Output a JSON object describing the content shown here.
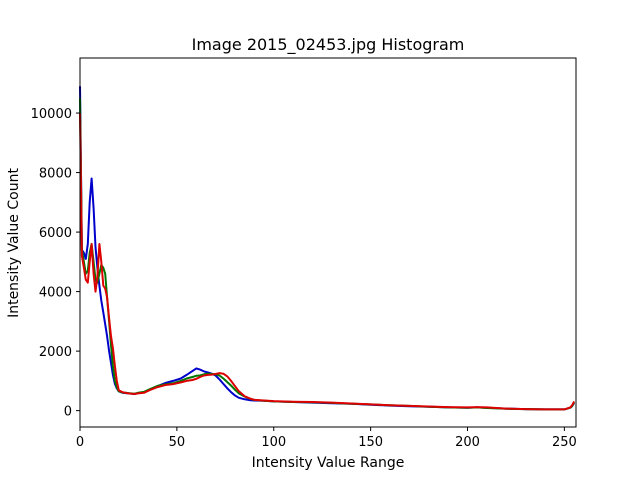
{
  "chart_data": {
    "type": "line",
    "title": "Image 2015_02453.jpg Histogram",
    "xlabel": "Intensity Value Range",
    "ylabel": "Intensity Value Count",
    "xlim": [
      0,
      256
    ],
    "ylim": [
      -550,
      11850
    ],
    "xticks": [
      0,
      50,
      100,
      150,
      200,
      250
    ],
    "yticks": [
      0,
      2000,
      4000,
      6000,
      8000,
      10000
    ],
    "grid": false,
    "legend": "none",
    "series": [
      {
        "color": "#0000cc",
        "points": [
          [
            0,
            10900
          ],
          [
            1,
            5400
          ],
          [
            2,
            5300
          ],
          [
            3,
            5100
          ],
          [
            4,
            5600
          ],
          [
            5,
            7000
          ],
          [
            6,
            7800
          ],
          [
            7,
            6800
          ],
          [
            8,
            5500
          ],
          [
            9,
            4800
          ],
          [
            10,
            4200
          ],
          [
            11,
            3700
          ],
          [
            12,
            3300
          ],
          [
            13,
            2900
          ],
          [
            14,
            2500
          ],
          [
            15,
            2000
          ],
          [
            16,
            1600
          ],
          [
            17,
            1200
          ],
          [
            18,
            900
          ],
          [
            19,
            750
          ],
          [
            20,
            650
          ],
          [
            22,
            600
          ],
          [
            25,
            580
          ],
          [
            28,
            560
          ],
          [
            30,
            590
          ],
          [
            33,
            620
          ],
          [
            36,
            700
          ],
          [
            40,
            820
          ],
          [
            44,
            930
          ],
          [
            48,
            1000
          ],
          [
            52,
            1080
          ],
          [
            55,
            1200
          ],
          [
            58,
            1330
          ],
          [
            60,
            1420
          ],
          [
            62,
            1380
          ],
          [
            64,
            1320
          ],
          [
            66,
            1280
          ],
          [
            68,
            1240
          ],
          [
            70,
            1180
          ],
          [
            72,
            1050
          ],
          [
            74,
            900
          ],
          [
            76,
            750
          ],
          [
            78,
            620
          ],
          [
            80,
            510
          ],
          [
            82,
            430
          ],
          [
            85,
            380
          ],
          [
            88,
            350
          ],
          [
            90,
            340
          ],
          [
            95,
            330
          ],
          [
            100,
            310
          ],
          [
            110,
            290
          ],
          [
            120,
            270
          ],
          [
            130,
            250
          ],
          [
            140,
            230
          ],
          [
            150,
            200
          ],
          [
            160,
            170
          ],
          [
            170,
            150
          ],
          [
            180,
            130
          ],
          [
            190,
            110
          ],
          [
            200,
            100
          ],
          [
            205,
            110
          ],
          [
            210,
            100
          ],
          [
            220,
            70
          ],
          [
            230,
            50
          ],
          [
            240,
            40
          ],
          [
            250,
            40
          ],
          [
            253,
            100
          ],
          [
            254,
            150
          ],
          [
            255,
            250
          ]
        ]
      },
      {
        "color": "#007700",
        "points": [
          [
            0,
            10500
          ],
          [
            1,
            5400
          ],
          [
            2,
            5000
          ],
          [
            3,
            4600
          ],
          [
            4,
            4700
          ],
          [
            5,
            5300
          ],
          [
            6,
            5600
          ],
          [
            7,
            5000
          ],
          [
            8,
            4400
          ],
          [
            9,
            4300
          ],
          [
            10,
            4600
          ],
          [
            11,
            4900
          ],
          [
            12,
            4800
          ],
          [
            13,
            4600
          ],
          [
            14,
            3800
          ],
          [
            15,
            3000
          ],
          [
            16,
            2200
          ],
          [
            17,
            1500
          ],
          [
            18,
            1000
          ],
          [
            19,
            780
          ],
          [
            20,
            650
          ],
          [
            22,
            610
          ],
          [
            25,
            590
          ],
          [
            28,
            570
          ],
          [
            30,
            600
          ],
          [
            33,
            630
          ],
          [
            36,
            720
          ],
          [
            40,
            830
          ],
          [
            44,
            880
          ],
          [
            48,
            920
          ],
          [
            52,
            1000
          ],
          [
            55,
            1080
          ],
          [
            58,
            1130
          ],
          [
            60,
            1170
          ],
          [
            62,
            1180
          ],
          [
            64,
            1220
          ],
          [
            66,
            1240
          ],
          [
            68,
            1230
          ],
          [
            70,
            1220
          ],
          [
            72,
            1180
          ],
          [
            74,
            1080
          ],
          [
            76,
            960
          ],
          [
            78,
            840
          ],
          [
            80,
            700
          ],
          [
            82,
            580
          ],
          [
            85,
            470
          ],
          [
            88,
            390
          ],
          [
            90,
            360
          ],
          [
            95,
            330
          ],
          [
            100,
            310
          ],
          [
            110,
            290
          ],
          [
            120,
            280
          ],
          [
            130,
            260
          ],
          [
            140,
            230
          ],
          [
            150,
            210
          ],
          [
            160,
            180
          ],
          [
            170,
            160
          ],
          [
            180,
            130
          ],
          [
            190,
            110
          ],
          [
            200,
            100
          ],
          [
            205,
            110
          ],
          [
            210,
            90
          ],
          [
            220,
            60
          ],
          [
            230,
            50
          ],
          [
            240,
            40
          ],
          [
            250,
            40
          ],
          [
            253,
            100
          ],
          [
            254,
            150
          ],
          [
            255,
            280
          ]
        ]
      },
      {
        "color": "#dd0000",
        "points": [
          [
            0,
            10000
          ],
          [
            1,
            5200
          ],
          [
            2,
            4800
          ],
          [
            3,
            4400
          ],
          [
            4,
            4300
          ],
          [
            5,
            5000
          ],
          [
            6,
            5600
          ],
          [
            7,
            4600
          ],
          [
            8,
            4000
          ],
          [
            9,
            4500
          ],
          [
            10,
            5600
          ],
          [
            11,
            5000
          ],
          [
            12,
            4200
          ],
          [
            13,
            4100
          ],
          [
            14,
            3800
          ],
          [
            15,
            3100
          ],
          [
            16,
            2500
          ],
          [
            17,
            2100
          ],
          [
            18,
            1500
          ],
          [
            19,
            1000
          ],
          [
            20,
            680
          ],
          [
            22,
            620
          ],
          [
            25,
            580
          ],
          [
            28,
            560
          ],
          [
            30,
            580
          ],
          [
            33,
            600
          ],
          [
            36,
            690
          ],
          [
            40,
            790
          ],
          [
            44,
            860
          ],
          [
            48,
            890
          ],
          [
            52,
            950
          ],
          [
            55,
            1000
          ],
          [
            58,
            1030
          ],
          [
            60,
            1070
          ],
          [
            62,
            1130
          ],
          [
            64,
            1180
          ],
          [
            66,
            1200
          ],
          [
            68,
            1210
          ],
          [
            70,
            1230
          ],
          [
            72,
            1260
          ],
          [
            74,
            1240
          ],
          [
            76,
            1150
          ],
          [
            78,
            1000
          ],
          [
            80,
            820
          ],
          [
            82,
            650
          ],
          [
            85,
            480
          ],
          [
            88,
            400
          ],
          [
            90,
            360
          ],
          [
            95,
            340
          ],
          [
            100,
            320
          ],
          [
            110,
            300
          ],
          [
            120,
            290
          ],
          [
            130,
            270
          ],
          [
            140,
            240
          ],
          [
            150,
            210
          ],
          [
            160,
            180
          ],
          [
            170,
            160
          ],
          [
            180,
            140
          ],
          [
            190,
            120
          ],
          [
            200,
            110
          ],
          [
            205,
            120
          ],
          [
            210,
            110
          ],
          [
            220,
            70
          ],
          [
            230,
            50
          ],
          [
            240,
            40
          ],
          [
            250,
            40
          ],
          [
            253,
            110
          ],
          [
            254,
            180
          ],
          [
            255,
            310
          ]
        ]
      }
    ]
  }
}
